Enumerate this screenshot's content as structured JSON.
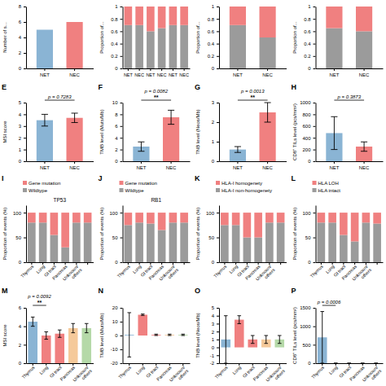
{
  "chart_data": [
    {
      "type": "bar",
      "categories": [
        "NET",
        "NEC"
      ],
      "values": [
        5,
        6
      ],
      "colors": [
        "#8ab4d4",
        "#f08080"
      ],
      "ylabel": "Number of s...",
      "ylim": [
        0,
        8
      ],
      "yticks": [
        0,
        2,
        4,
        6,
        8
      ]
    },
    {
      "type": "bar",
      "stacked": true,
      "categories": [
        "NET",
        "NEC",
        "NET",
        "NEC",
        "NET",
        "NEC"
      ],
      "series": [
        {
          "color": "#9b9b9b",
          "values": [
            0.7,
            0.7,
            0.6,
            0.65,
            0.7,
            0.7
          ]
        },
        {
          "color": "#f08080",
          "values": [
            0.3,
            0.3,
            0.4,
            0.35,
            0.3,
            0.3
          ]
        }
      ],
      "ylabel": "Proportion of...",
      "ylim": [
        0,
        1
      ],
      "yticks": [
        0,
        0.2,
        0.4,
        0.6,
        0.8,
        1
      ]
    },
    {
      "type": "bar",
      "stacked": true,
      "categories": [
        "NET",
        "NEC"
      ],
      "series": [
        {
          "color": "#9b9b9b",
          "values": [
            0.7,
            0.5
          ]
        },
        {
          "color": "#f08080",
          "values": [
            0.3,
            0.5
          ]
        }
      ],
      "ylabel": "Proportion of...",
      "ylim": [
        0,
        1
      ],
      "yticks": [
        0,
        0.2,
        0.4,
        0.6,
        0.8,
        1
      ]
    },
    {
      "type": "bar",
      "stacked": true,
      "categories": [
        "NET",
        "NEC"
      ],
      "series": [
        {
          "color": "#9b9b9b",
          "values": [
            0.65,
            0.6
          ]
        },
        {
          "color": "#f08080",
          "values": [
            0.35,
            0.4
          ]
        }
      ],
      "ylabel": "Proportion of...",
      "ylim": [
        0,
        1
      ],
      "yticks": [
        0,
        0.2,
        0.4,
        0.6,
        0.8,
        1
      ]
    },
    {
      "type": "bar",
      "title": "E",
      "categories": [
        "NET",
        "NEC"
      ],
      "values": [
        3.5,
        3.7
      ],
      "errors": [
        0.5,
        0.4
      ],
      "colors": [
        "#8ab4d4",
        "#f08080"
      ],
      "ylabel": "MSI score",
      "ylim": [
        0,
        5
      ],
      "yticks": [
        0,
        1,
        2,
        3,
        4,
        5
      ],
      "annotations": [
        "p = 0.7283"
      ]
    },
    {
      "type": "bar",
      "title": "F",
      "categories": [
        "NET",
        "NEC"
      ],
      "values": [
        2.5,
        7.5
      ],
      "errors": [
        0.8,
        1.2
      ],
      "colors": [
        "#8ab4d4",
        "#f08080"
      ],
      "ylabel": "TMB level (Muts/Mb)",
      "ylim": [
        0,
        10
      ],
      "yticks": [
        0,
        2,
        4,
        6,
        8,
        10
      ],
      "annotations": [
        "p = 0.0082",
        "**"
      ]
    },
    {
      "type": "bar",
      "title": "G",
      "categories": [
        "NET",
        "NEC"
      ],
      "values": [
        0.6,
        2.5
      ],
      "errors": [
        0.15,
        0.5
      ],
      "colors": [
        "#8ab4d4",
        "#f08080"
      ],
      "ylabel": "TNB level (Neos/Mb)",
      "ylim": [
        0,
        3
      ],
      "yticks": [
        0,
        1,
        2,
        3
      ],
      "annotations": [
        "p = 0.0013",
        "**"
      ]
    },
    {
      "type": "bar",
      "title": "H",
      "categories": [
        "NET",
        "NEC"
      ],
      "values": [
        480,
        250
      ],
      "errors": [
        280,
        80
      ],
      "colors": [
        "#8ab4d4",
        "#f08080"
      ],
      "ylabel": "CD8⁺ TILs level (pcs/mm²)",
      "ylim": [
        0,
        1000
      ],
      "yticks": [
        0,
        200,
        400,
        600,
        800,
        1000
      ],
      "annotations": [
        "p = 0.3873"
      ]
    },
    {
      "type": "bar",
      "stacked": true,
      "title": "I",
      "subtitle": "TP53",
      "categories": [
        "Thymus",
        "Lung",
        "GI tract",
        "Pancreas",
        "Unknown/\nothers",
        null
      ],
      "series": [
        {
          "name": "Wildtype",
          "color": "#9b9b9b",
          "values": [
            80,
            80,
            55,
            30,
            80,
            80
          ]
        },
        {
          "name": "Gene mutation",
          "color": "#f08080",
          "values": [
            20,
            20,
            45,
            70,
            20,
            20
          ]
        }
      ],
      "ylabel": "Proportion of events (%)",
      "ylim": [
        0,
        115
      ],
      "yticks": [
        0,
        50,
        100
      ],
      "legend": "upper left"
    },
    {
      "type": "bar",
      "stacked": true,
      "title": "J",
      "subtitle": "RB1",
      "categories": [
        "Thymus",
        "Lung",
        "GI tract",
        "Pancreas",
        "Unknown/\nothers",
        null
      ],
      "series": [
        {
          "name": "Wildtype",
          "color": "#9b9b9b",
          "values": [
            75,
            80,
            78,
            65,
            80,
            80
          ]
        },
        {
          "name": "Gene mutation",
          "color": "#f08080",
          "values": [
            25,
            20,
            22,
            35,
            20,
            20
          ]
        }
      ],
      "ylabel": "Proportion of events (%)",
      "ylim": [
        0,
        115
      ],
      "yticks": [
        0,
        50,
        100
      ],
      "legend": "upper left"
    },
    {
      "type": "bar",
      "stacked": true,
      "title": "K",
      "categories": [
        "Thymus",
        "Lung",
        "GI tract",
        "Pancreas",
        "Unknown/\nothers",
        null
      ],
      "series": [
        {
          "name": "HLA-I non-homogenety",
          "color": "#9b9b9b",
          "values": [
            75,
            75,
            50,
            50,
            80,
            80
          ]
        },
        {
          "name": "HLA-I homogenety",
          "color": "#f08080",
          "values": [
            25,
            25,
            50,
            50,
            20,
            20
          ]
        }
      ],
      "ylabel": "Proportion of events (%)",
      "ylim": [
        0,
        115
      ],
      "yticks": [
        0,
        50,
        100
      ],
      "legend": "upper left"
    },
    {
      "type": "bar",
      "stacked": true,
      "title": "L",
      "categories": [
        "Thymus",
        "Lung",
        "GI tract",
        "Pancreas",
        "Unknown/\nothers",
        null
      ],
      "series": [
        {
          "name": "HLA intact",
          "color": "#9b9b9b",
          "values": [
            80,
            80,
            55,
            42,
            80,
            78
          ]
        },
        {
          "name": "HLA LOH",
          "color": "#f08080",
          "values": [
            20,
            20,
            45,
            58,
            20,
            22
          ]
        }
      ],
      "ylabel": "Proportion of events (%)",
      "ylim": [
        0,
        115
      ],
      "yticks": [
        0,
        50,
        100
      ],
      "legend": "upper left"
    },
    {
      "type": "bar",
      "title": "M",
      "categories": [
        "Thymus",
        "Lung",
        "GI tract",
        "Pancreas",
        "Unknown/\nothers"
      ],
      "values": [
        4.5,
        3.0,
        3.2,
        3.8,
        3.8
      ],
      "errors": [
        0.5,
        0.4,
        0.4,
        0.5,
        0.5
      ],
      "colors": [
        "#8ab4d4",
        "#f08080",
        "#f08080",
        "#f5c99a",
        "#b5d9a8"
      ],
      "ylabel": "MSI score",
      "ylim": [
        0,
        6
      ],
      "yticks": [
        0,
        2,
        4,
        6
      ],
      "annotations": [
        "p = 0.0092",
        "**"
      ]
    },
    {
      "type": "bar",
      "title": "N",
      "categories": [
        "Thymus",
        "Lung",
        "GI tract",
        "Pancreas",
        "Unknown/\nothers"
      ],
      "values": [
        0.5,
        15.0,
        0.5,
        0.5,
        0.5
      ],
      "errors": [
        16.0,
        0.5,
        0.5,
        0.5,
        0.5
      ],
      "colors": [
        "#8ab4d4",
        "#f08080",
        "#f08080",
        "#f5c99a",
        "#b5d9a8"
      ],
      "ylabel": "TMB level (Muts/Mb)",
      "ylim": [
        -20,
        20
      ],
      "yticks": [
        -20,
        -10,
        0,
        10,
        20
      ]
    },
    {
      "type": "bar",
      "title": "O",
      "categories": [
        "Thymus",
        "Lung",
        "GI tract",
        "Pancreas",
        "Unknown/\nothers"
      ],
      "values": [
        1.0,
        3.5,
        1.0,
        1.0,
        1.0
      ],
      "errors": [
        3.0,
        0.5,
        0.5,
        0.5,
        0.5
      ],
      "colors": [
        "#8ab4d4",
        "#f08080",
        "#f08080",
        "#f5c99a",
        "#b5d9a8"
      ],
      "ylabel": "TNB level (Neos/Mb)",
      "ylim": [
        -2,
        5
      ],
      "yticks": [
        -2,
        -1,
        0,
        1,
        2,
        3,
        4,
        5
      ]
    },
    {
      "type": "bar",
      "title": "P",
      "categories": [
        "Thymus",
        "Lung",
        "GI tract",
        "Pancreas",
        "Unknown/\nothers"
      ],
      "values": [
        700,
        0.1,
        0.1,
        0.1,
        0.1
      ],
      "errors": [
        700,
        0.1,
        0.1,
        0.1,
        0.1
      ],
      "colors": [
        "#8ab4d4",
        "#f08080",
        "#f08080",
        "#f5c99a",
        "#b5d9a8"
      ],
      "ylabel": "CD8⁺ TILs level (pcs/mm²)",
      "ylim": [
        0,
        1500
      ],
      "yticks": [
        0,
        500,
        1000,
        1500
      ],
      "annotations": [
        "p = 0.0006"
      ]
    }
  ]
}
